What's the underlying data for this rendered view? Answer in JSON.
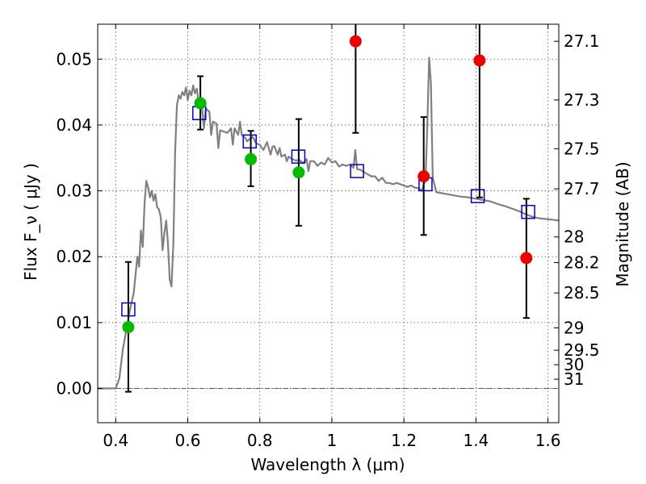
{
  "chart_data": {
    "type": "scatter",
    "xlabel": "Wavelength  λ (μm)",
    "ylabel": "Flux  F_ν  ( μJy )",
    "y2label": "Magnitude (AB)",
    "xlim": [
      0.35,
      1.63
    ],
    "ylim": [
      -0.0052,
      0.0553
    ],
    "x_ticks": [
      0.4,
      0.6,
      0.8,
      1.0,
      1.2,
      1.4,
      1.6
    ],
    "x_tick_labels": [
      "0.4",
      "0.6",
      "0.8",
      "1",
      "1.2",
      "1.4",
      "1.6"
    ],
    "y_ticks": [
      0.0,
      0.01,
      0.02,
      0.03,
      0.04,
      0.05
    ],
    "y_tick_labels": [
      "0.00",
      "0.01",
      "0.02",
      "0.03",
      "0.04",
      "0.05"
    ],
    "mag_ticks": [
      {
        "label": "27.1",
        "flux": 0.0527
      },
      {
        "label": "27.3",
        "flux": 0.0438
      },
      {
        "label": "27.5",
        "flux": 0.0364
      },
      {
        "label": "27.7",
        "flux": 0.0303
      },
      {
        "label": "28",
        "flux": 0.023
      },
      {
        "label": "28.2",
        "flux": 0.0191
      },
      {
        "label": "28.5",
        "flux": 0.0145
      },
      {
        "label": "29",
        "flux": 0.0092
      },
      {
        "label": "29.5",
        "flux": 0.0058
      },
      {
        "label": "30",
        "flux": 0.0036
      },
      {
        "label": "31",
        "flux": 0.0014
      }
    ],
    "grid": true,
    "zero_line": true,
    "model_spectrum": {
      "color": "#808080",
      "points": [
        [
          0.35,
          0.0
        ],
        [
          0.4,
          0.0
        ],
        [
          0.41,
          0.0015
        ],
        [
          0.42,
          0.006
        ],
        [
          0.43,
          0.009
        ],
        [
          0.44,
          0.012
        ],
        [
          0.45,
          0.0145
        ],
        [
          0.46,
          0.02
        ],
        [
          0.465,
          0.0185
        ],
        [
          0.47,
          0.024
        ],
        [
          0.475,
          0.0215
        ],
        [
          0.48,
          0.028
        ],
        [
          0.485,
          0.0315
        ],
        [
          0.49,
          0.0305
        ],
        [
          0.495,
          0.029
        ],
        [
          0.5,
          0.03
        ],
        [
          0.505,
          0.0285
        ],
        [
          0.51,
          0.0295
        ],
        [
          0.515,
          0.0275
        ],
        [
          0.52,
          0.0272
        ],
        [
          0.525,
          0.026
        ],
        [
          0.53,
          0.021
        ],
        [
          0.535,
          0.0235
        ],
        [
          0.54,
          0.0255
        ],
        [
          0.545,
          0.022
        ],
        [
          0.55,
          0.0165
        ],
        [
          0.555,
          0.0155
        ],
        [
          0.56,
          0.022
        ],
        [
          0.565,
          0.036
        ],
        [
          0.57,
          0.043
        ],
        [
          0.575,
          0.0445
        ],
        [
          0.58,
          0.044
        ],
        [
          0.585,
          0.045
        ],
        [
          0.59,
          0.0445
        ],
        [
          0.595,
          0.0457
        ],
        [
          0.6,
          0.0438
        ],
        [
          0.605,
          0.0452
        ],
        [
          0.61,
          0.0445
        ],
        [
          0.615,
          0.046
        ],
        [
          0.62,
          0.0448
        ],
        [
          0.625,
          0.0455
        ],
        [
          0.63,
          0.0435
        ],
        [
          0.64,
          0.0425
        ],
        [
          0.645,
          0.0395
        ],
        [
          0.65,
          0.0425
        ],
        [
          0.66,
          0.042
        ],
        [
          0.665,
          0.0385
        ],
        [
          0.67,
          0.0405
        ],
        [
          0.68,
          0.0402
        ],
        [
          0.685,
          0.0365
        ],
        [
          0.69,
          0.0392
        ],
        [
          0.7,
          0.039
        ],
        [
          0.71,
          0.0388
        ],
        [
          0.72,
          0.0395
        ],
        [
          0.725,
          0.037
        ],
        [
          0.73,
          0.0395
        ],
        [
          0.735,
          0.039
        ],
        [
          0.74,
          0.0385
        ],
        [
          0.745,
          0.0405
        ],
        [
          0.75,
          0.0385
        ],
        [
          0.76,
          0.038
        ],
        [
          0.765,
          0.0375
        ],
        [
          0.77,
          0.0378
        ],
        [
          0.78,
          0.0382
        ],
        [
          0.79,
          0.0372
        ],
        [
          0.8,
          0.037
        ],
        [
          0.81,
          0.0362
        ],
        [
          0.82,
          0.0374
        ],
        [
          0.83,
          0.0355
        ],
        [
          0.835,
          0.0367
        ],
        [
          0.84,
          0.0368
        ],
        [
          0.85,
          0.0355
        ],
        [
          0.855,
          0.0365
        ],
        [
          0.86,
          0.0352
        ],
        [
          0.87,
          0.0355
        ],
        [
          0.875,
          0.0345
        ],
        [
          0.88,
          0.0352
        ],
        [
          0.89,
          0.0348
        ],
        [
          0.9,
          0.0346
        ],
        [
          0.91,
          0.0347
        ],
        [
          0.92,
          0.0342
        ],
        [
          0.93,
          0.0348
        ],
        [
          0.935,
          0.033
        ],
        [
          0.94,
          0.0345
        ],
        [
          0.95,
          0.0345
        ],
        [
          0.96,
          0.0338
        ],
        [
          0.97,
          0.0343
        ],
        [
          0.98,
          0.034
        ],
        [
          0.99,
          0.035
        ],
        [
          1.0,
          0.0343
        ],
        [
          1.01,
          0.0345
        ],
        [
          1.02,
          0.0337
        ],
        [
          1.03,
          0.034
        ],
        [
          1.04,
          0.0338
        ],
        [
          1.05,
          0.034
        ],
        [
          1.06,
          0.0335
        ],
        [
          1.065,
          0.0362
        ],
        [
          1.07,
          0.0333
        ],
        [
          1.08,
          0.0332
        ],
        [
          1.09,
          0.0328
        ],
        [
          1.1,
          0.0325
        ],
        [
          1.11,
          0.0322
        ],
        [
          1.12,
          0.0322
        ],
        [
          1.13,
          0.0315
        ],
        [
          1.14,
          0.032
        ],
        [
          1.15,
          0.0312
        ],
        [
          1.16,
          0.0312
        ],
        [
          1.17,
          0.031
        ],
        [
          1.18,
          0.0312
        ],
        [
          1.19,
          0.031
        ],
        [
          1.2,
          0.0308
        ],
        [
          1.21,
          0.0306
        ],
        [
          1.22,
          0.0308
        ],
        [
          1.23,
          0.0305
        ],
        [
          1.24,
          0.0304
        ],
        [
          1.25,
          0.03
        ],
        [
          1.255,
          0.031
        ],
        [
          1.26,
          0.0315
        ],
        [
          1.265,
          0.04
        ],
        [
          1.27,
          0.0502
        ],
        [
          1.275,
          0.0465
        ],
        [
          1.28,
          0.032
        ],
        [
          1.29,
          0.0298
        ],
        [
          1.3,
          0.0297
        ],
        [
          1.32,
          0.0295
        ],
        [
          1.34,
          0.0293
        ],
        [
          1.36,
          0.0291
        ],
        [
          1.38,
          0.029
        ],
        [
          1.4,
          0.0288
        ],
        [
          1.42,
          0.0286
        ],
        [
          1.44,
          0.0284
        ],
        [
          1.46,
          0.028
        ],
        [
          1.48,
          0.0277
        ],
        [
          1.5,
          0.0273
        ],
        [
          1.52,
          0.0269
        ],
        [
          1.54,
          0.0264
        ],
        [
          1.56,
          0.026
        ],
        [
          1.58,
          0.0258
        ],
        [
          1.6,
          0.0257
        ],
        [
          1.63,
          0.0255
        ]
      ]
    },
    "series": [
      {
        "marker": "square",
        "color": "#0000cc",
        "points": [
          {
            "x": 0.435,
            "y": 0.012
          },
          {
            "x": 0.632,
            "y": 0.0418
          },
          {
            "x": 0.772,
            "y": 0.0375
          },
          {
            "x": 0.907,
            "y": 0.0352
          },
          {
            "x": 1.07,
            "y": 0.033
          },
          {
            "x": 1.26,
            "y": 0.031
          },
          {
            "x": 1.405,
            "y": 0.0292
          },
          {
            "x": 1.545,
            "y": 0.0268
          }
        ]
      },
      {
        "marker": "circle",
        "color": "#00bb00",
        "points": [
          {
            "x": 0.435,
            "y": 0.0093,
            "yerr_low": -0.0005,
            "yerr_high": 0.0192
          },
          {
            "x": 0.635,
            "y": 0.0433,
            "yerr_low": 0.0393,
            "yerr_high": 0.0474
          },
          {
            "x": 0.775,
            "y": 0.0348,
            "yerr_low": 0.0307,
            "yerr_high": 0.0391
          },
          {
            "x": 0.908,
            "y": 0.0328,
            "yerr_low": 0.0247,
            "yerr_high": 0.0409
          }
        ]
      },
      {
        "marker": "circle",
        "color": "#ee0000",
        "points": [
          {
            "x": 1.066,
            "y": 0.0527,
            "yerr_low": 0.0388,
            "yerr_high": 0.0553
          },
          {
            "x": 1.255,
            "y": 0.0322,
            "yerr_low": 0.0233,
            "yerr_high": 0.0412
          },
          {
            "x": 1.41,
            "y": 0.0498,
            "yerr_low": 0.029,
            "yerr_high": 0.0553
          },
          {
            "x": 1.54,
            "y": 0.0198,
            "yerr_low": 0.0107,
            "yerr_high": 0.0288
          }
        ]
      }
    ]
  }
}
